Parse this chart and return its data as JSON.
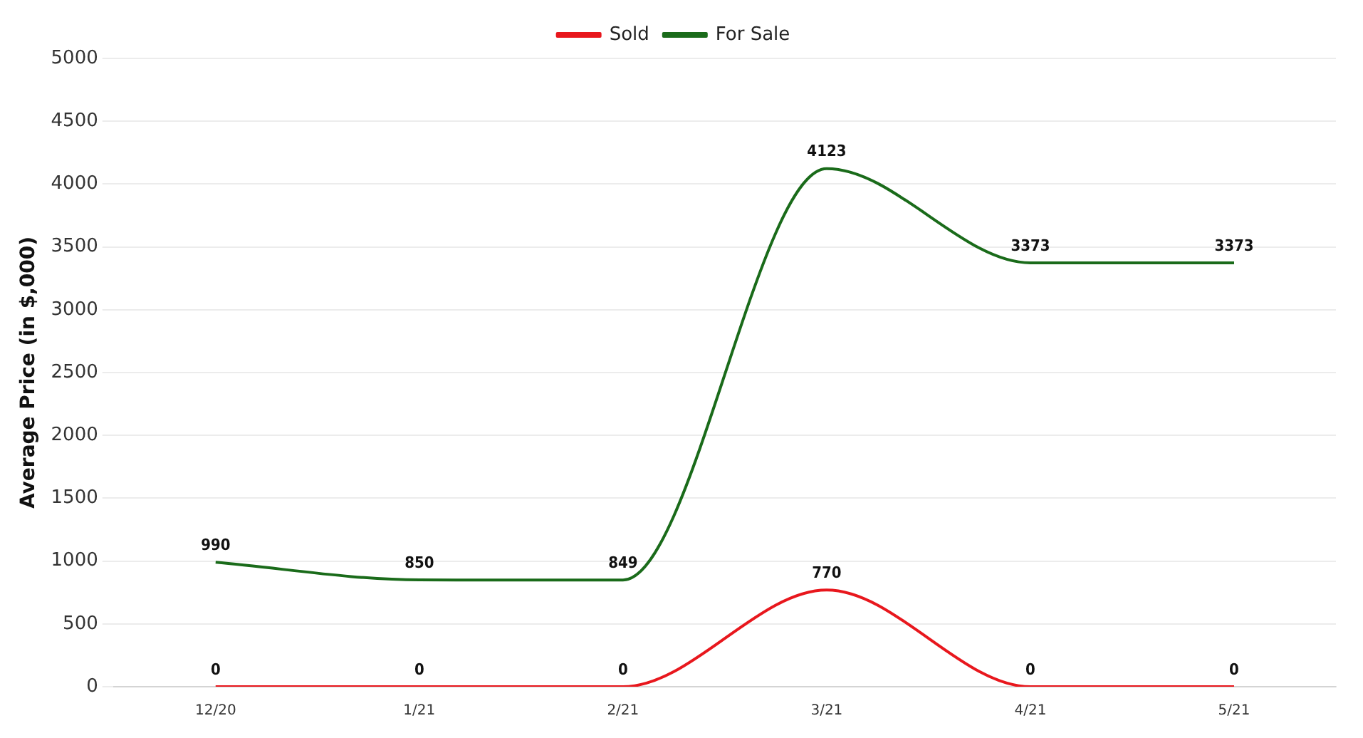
{
  "chart_data": {
    "type": "line",
    "ylabel": "Average Price (in $,000)",
    "categories": [
      "12/20",
      "1/21",
      "2/21",
      "3/21",
      "4/21",
      "5/21"
    ],
    "series": [
      {
        "name": "Sold",
        "color": "#e8171d",
        "values": [
          0,
          0,
          0,
          770,
          0,
          0
        ]
      },
      {
        "name": "For Sale",
        "color": "#1a6b1a",
        "values": [
          990,
          850,
          849,
          4123,
          3373,
          3373
        ]
      }
    ],
    "ylim": [
      0,
      5000
    ],
    "yticks": [
      0,
      500,
      1000,
      1500,
      2000,
      2500,
      3000,
      3500,
      4000,
      4500,
      5000
    ],
    "grid": "y",
    "legend": "top",
    "data_labels": true,
    "marker": "none",
    "line_style": "solid"
  }
}
